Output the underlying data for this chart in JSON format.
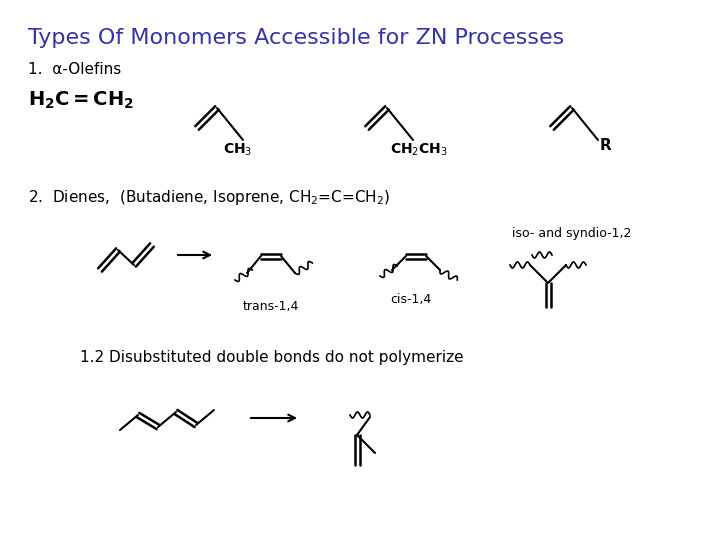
{
  "title": "Types Of Monomers Accessible for ZN Processes",
  "title_color": "#3333aa",
  "title_fontsize": 16,
  "bg_color": "#ffffff",
  "text_color": "#000000",
  "label1": "1.  α-Olefins",
  "label2": "2.  Dienes,  (Butadiene, Isoprene, CH",
  "label3": "1.2 Disubstituted double bonds do not polymerize",
  "trans_label": "trans-1,4",
  "cis_label": "cis-1,4",
  "iso_label": "iso- and syndio-1,2"
}
